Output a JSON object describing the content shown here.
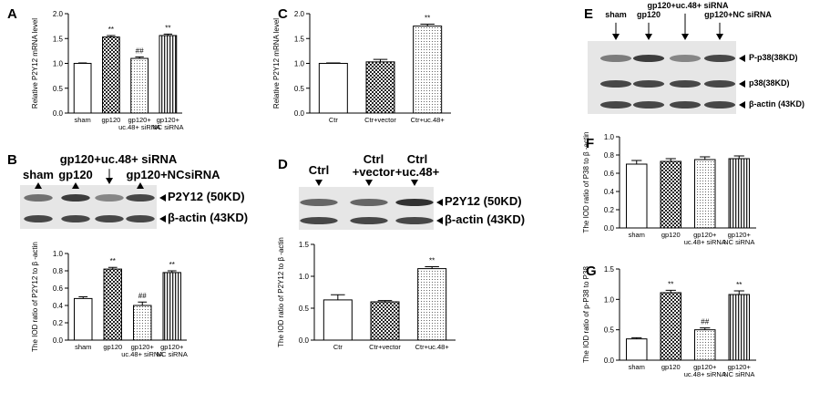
{
  "chart_data": [
    {
      "type": "bar",
      "panel": "A",
      "y_label": "Relative P2Y12 mRNA level",
      "categories": [
        "sham",
        "gp120",
        "gp120+\nuc.48+ siRNA",
        "gp120+\nNC siRNA"
      ],
      "values": [
        1.0,
        1.53,
        1.1,
        1.56
      ],
      "errors": [
        0.01,
        0.03,
        0.03,
        0.03
      ],
      "significance": [
        null,
        "**",
        "##",
        "**"
      ],
      "patterns": [
        "none",
        "checker",
        "dots",
        "stripes"
      ],
      "ylim": [
        0,
        2.0
      ],
      "yticks": [
        {
          "value": 0,
          "label": "0.0"
        },
        0.5,
        {
          "value": 1.0,
          "label": "1.0"
        },
        1.5,
        {
          "value": 2.0,
          "label": "2.0"
        }
      ]
    },
    {
      "type": "bar",
      "panel": "B",
      "y_label": "The IOD ratio of  P2Y12 to β -actin",
      "categories": [
        "sham",
        "gp120",
        "gp120+\nuc.48+ siRNA",
        "gp120+\nNC siRNA"
      ],
      "values": [
        0.48,
        0.82,
        0.4,
        0.78
      ],
      "errors": [
        0.02,
        0.02,
        0.04,
        0.02
      ],
      "significance": [
        null,
        "**",
        "##",
        "**"
      ],
      "patterns": [
        "none",
        "checker",
        "dots",
        "stripes"
      ],
      "ylim": [
        0,
        1.0
      ],
      "yticks": [
        {
          "value": 0,
          "label": "0.0"
        },
        0.2,
        0.4,
        0.6,
        0.8,
        {
          "value": 1.0,
          "label": "1.0"
        }
      ]
    },
    {
      "type": "bar",
      "panel": "C",
      "y_label": "Relative P2Y12 mRNA level",
      "categories": [
        "Ctr",
        "Ctr+vector",
        "Ctr+uc.48+"
      ],
      "values": [
        1.0,
        1.03,
        1.75
      ],
      "errors": [
        0.01,
        0.05,
        0.04
      ],
      "significance": [
        null,
        null,
        "**"
      ],
      "patterns": [
        "none",
        "checker",
        "dots"
      ],
      "ylim": [
        0,
        2.0
      ],
      "yticks": [
        {
          "value": 0,
          "label": "0.0"
        },
        0.5,
        {
          "value": 1.0,
          "label": "1.0"
        },
        1.5,
        {
          "value": 2.0,
          "label": "2.0"
        }
      ]
    },
    {
      "type": "bar",
      "panel": "D",
      "y_label": "The IOD ratio of  P2Y12 to β -actin",
      "categories": [
        "Ctr",
        "Ctr+vector",
        "Ctr+uc.48+"
      ],
      "values": [
        0.63,
        0.6,
        1.12
      ],
      "errors": [
        0.08,
        0.02,
        0.03
      ],
      "significance": [
        null,
        null,
        "**"
      ],
      "patterns": [
        "none",
        "checker",
        "dots"
      ],
      "ylim": [
        0,
        1.5
      ],
      "yticks": [
        {
          "value": 0,
          "label": "0.0"
        },
        0.5,
        {
          "value": 1.0,
          "label": "1.0"
        },
        1.5
      ]
    },
    {
      "type": "bar",
      "panel": "F",
      "y_label": "The IOD ratio of P38 to β -actin",
      "categories": [
        "sham",
        "gp120",
        "gp120+\nuc.48+ siRNA",
        "gp120+\nNC siRNA"
      ],
      "values": [
        0.7,
        0.73,
        0.75,
        0.76
      ],
      "errors": [
        0.04,
        0.03,
        0.03,
        0.03
      ],
      "significance": [
        null,
        null,
        null,
        null
      ],
      "patterns": [
        "none",
        "checker",
        "dots",
        "stripes"
      ],
      "ylim": [
        0,
        1.0
      ],
      "yticks": [
        {
          "value": 0,
          "label": "0.0"
        },
        0.2,
        0.4,
        0.6,
        0.8,
        {
          "value": 1.0,
          "label": "1.0"
        }
      ]
    },
    {
      "type": "bar",
      "panel": "G",
      "y_label": "The IOD ratio of p-P38 to P38",
      "categories": [
        "sham",
        "gp120",
        "gp120+\nuc.48+ siRNA",
        "gp120+\nNC siRNA"
      ],
      "values": [
        0.35,
        1.11,
        0.5,
        1.08
      ],
      "errors": [
        0.02,
        0.04,
        0.03,
        0.06
      ],
      "significance": [
        null,
        "**",
        "##",
        "**"
      ],
      "patterns": [
        "none",
        "checker",
        "dots",
        "stripes"
      ],
      "ylim": [
        0,
        1.5
      ],
      "yticks": [
        {
          "value": 0,
          "label": "0.0"
        },
        0.5,
        {
          "value": 1.0,
          "label": "1.0"
        },
        1.5
      ]
    }
  ],
  "blots": [
    {
      "lanes": [
        "sham",
        "gp120",
        "gp120+uc.48+ siRNA",
        "gp120+NCsiRNA"
      ],
      "bands": [
        "P2Y12 (50KD)",
        "β-actin (43KD)"
      ]
    },
    {
      "lanes": [
        "Ctrl",
        "Ctrl\n+vector",
        "Ctrl\n+uc.48+"
      ],
      "bands": [
        "P2Y12 (50KD)",
        "β-actin (43KD)"
      ]
    },
    {
      "panel": "E",
      "lanes": [
        "sham",
        "gp120",
        "gp120+uc.48+ siRNA",
        "gp120+NC siRNA"
      ],
      "bands": [
        "P-p38(38KD)",
        "p38(38KD)",
        "β-actin (43KD)"
      ]
    }
  ]
}
